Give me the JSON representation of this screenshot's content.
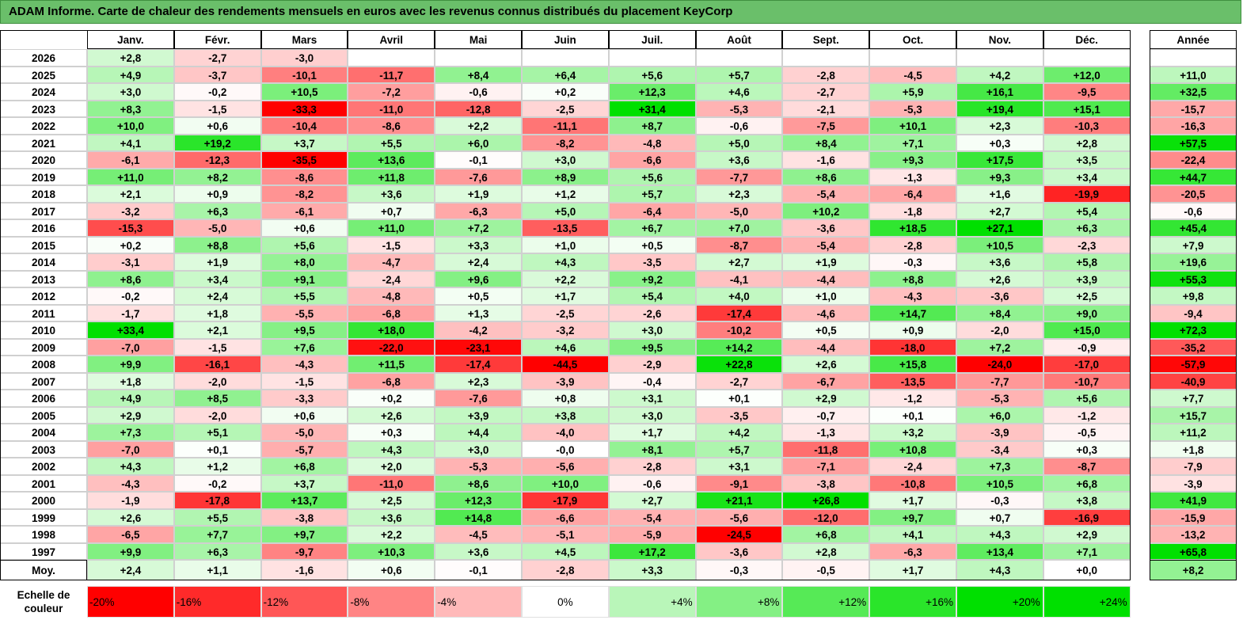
{
  "title": "ADAM Informe. Carte de chaleur des rendements mensuels en euros avec les revenus connus distribués du placement KeyCorp",
  "chart_data": {
    "type": "heatmap",
    "title": "ADAM Informe. Carte de chaleur des rendements mensuels en euros avec les revenus connus distribués du placement KeyCorp",
    "months": [
      "Janv.",
      "Févr.",
      "Mars",
      "Avril",
      "Mai",
      "Juin",
      "Juil.",
      "Août",
      "Sept.",
      "Oct.",
      "Nov.",
      "Déc."
    ],
    "year_header": "Année",
    "rows": [
      {
        "year": "2026",
        "values": [
          "+2,8",
          "-2,7",
          "-3,0",
          "",
          "",
          "",
          "",
          "",
          "",
          "",
          "",
          ""
        ],
        "annual": ""
      },
      {
        "year": "2025",
        "values": [
          "+4,9",
          "-3,7",
          "-10,1",
          "-11,7",
          "+8,4",
          "+6,4",
          "+5,6",
          "+5,7",
          "-2,8",
          "-4,5",
          "+4,2",
          "+12,0"
        ],
        "annual": "+11,0"
      },
      {
        "year": "2024",
        "values": [
          "+3,0",
          "-0,2",
          "+10,5",
          "-7,2",
          "-0,6",
          "+0,2",
          "+12,3",
          "+4,6",
          "-2,7",
          "+5,9",
          "+16,1",
          "-9,5"
        ],
        "annual": "+32,5"
      },
      {
        "year": "2023",
        "values": [
          "+8,3",
          "-1,5",
          "-33,3",
          "-11,0",
          "-12,8",
          "-2,5",
          "+31,4",
          "-5,3",
          "-2,1",
          "-5,3",
          "+19,4",
          "+15,1"
        ],
        "annual": "-15,7"
      },
      {
        "year": "2022",
        "values": [
          "+10,0",
          "+0,6",
          "-10,4",
          "-8,6",
          "+2,2",
          "-11,1",
          "+8,7",
          "-0,6",
          "-7,5",
          "+10,1",
          "+2,3",
          "-10,3"
        ],
        "annual": "-16,3"
      },
      {
        "year": "2021",
        "values": [
          "+4,1",
          "+19,2",
          "+3,7",
          "+5,5",
          "+6,0",
          "-8,2",
          "-4,8",
          "+5,0",
          "+8,4",
          "+7,1",
          "+0,3",
          "+2,8"
        ],
        "annual": "+57,5"
      },
      {
        "year": "2020",
        "values": [
          "-6,1",
          "-12,3",
          "-35,5",
          "+13,6",
          "-0,1",
          "+3,0",
          "-6,6",
          "+3,6",
          "-1,6",
          "+9,3",
          "+17,5",
          "+3,5"
        ],
        "annual": "-22,4"
      },
      {
        "year": "2019",
        "values": [
          "+11,0",
          "+8,2",
          "-8,6",
          "+11,8",
          "-7,6",
          "+8,9",
          "+5,6",
          "-7,7",
          "+8,6",
          "-1,3",
          "+9,3",
          "+3,4"
        ],
        "annual": "+44,7"
      },
      {
        "year": "2018",
        "values": [
          "+2,1",
          "+0,9",
          "-8,2",
          "+3,6",
          "+1,9",
          "+1,2",
          "+5,7",
          "+2,3",
          "-5,4",
          "-6,4",
          "+1,6",
          "-19,9"
        ],
        "annual": "-20,5"
      },
      {
        "year": "2017",
        "values": [
          "-3,2",
          "+6,3",
          "-6,1",
          "+0,7",
          "-6,3",
          "+5,0",
          "-6,4",
          "-5,0",
          "+10,2",
          "-1,8",
          "+2,7",
          "+5,4"
        ],
        "annual": "-0,6"
      },
      {
        "year": "2016",
        "values": [
          "-15,3",
          "-5,0",
          "+0,6",
          "+11,0",
          "+7,2",
          "-13,5",
          "+6,7",
          "+7,0",
          "-3,6",
          "+18,5",
          "+27,1",
          "+6,3"
        ],
        "annual": "+45,4"
      },
      {
        "year": "2015",
        "values": [
          "+0,2",
          "+8,8",
          "+5,6",
          "-1,5",
          "+3,3",
          "+1,0",
          "+0,5",
          "-8,7",
          "-5,4",
          "-2,8",
          "+10,5",
          "-2,3"
        ],
        "annual": "+7,9"
      },
      {
        "year": "2014",
        "values": [
          "-3,1",
          "+1,9",
          "+8,0",
          "-4,7",
          "+2,4",
          "+4,3",
          "-3,5",
          "+2,7",
          "+1,9",
          "-0,3",
          "+3,6",
          "+5,8"
        ],
        "annual": "+19,6"
      },
      {
        "year": "2013",
        "values": [
          "+8,6",
          "+3,4",
          "+9,1",
          "-2,4",
          "+9,6",
          "+2,2",
          "+9,2",
          "-4,1",
          "-4,4",
          "+8,8",
          "+2,6",
          "+3,9"
        ],
        "annual": "+55,3"
      },
      {
        "year": "2012",
        "values": [
          "-0,2",
          "+2,4",
          "+5,5",
          "-4,8",
          "+0,5",
          "+1,7",
          "+5,4",
          "+4,0",
          "+1,0",
          "-4,3",
          "-3,6",
          "+2,5"
        ],
        "annual": "+9,8"
      },
      {
        "year": "2011",
        "values": [
          "-1,7",
          "+1,8",
          "-5,5",
          "-6,8",
          "+1,3",
          "-2,5",
          "-2,6",
          "-17,4",
          "-4,6",
          "+14,7",
          "+8,4",
          "+9,0"
        ],
        "annual": "-9,4"
      },
      {
        "year": "2010",
        "values": [
          "+33,4",
          "+2,1",
          "+9,5",
          "+18,0",
          "-4,2",
          "-3,2",
          "+3,0",
          "-10,2",
          "+0,5",
          "+0,9",
          "-2,0",
          "+15,0"
        ],
        "annual": "+72,3"
      },
      {
        "year": "2009",
        "values": [
          "-7,0",
          "-1,5",
          "+7,6",
          "-22,0",
          "-23,1",
          "+4,6",
          "+9,5",
          "+14,2",
          "-4,4",
          "-18,0",
          "+7,2",
          "-0,9"
        ],
        "annual": "-35,2"
      },
      {
        "year": "2008",
        "values": [
          "+9,9",
          "-16,1",
          "-4,3",
          "+11,5",
          "-17,4",
          "-44,5",
          "-2,9",
          "+22,8",
          "+2,6",
          "+15,8",
          "-24,0",
          "-17,0"
        ],
        "annual": "-57,9"
      },
      {
        "year": "2007",
        "values": [
          "+1,8",
          "-2,0",
          "-1,5",
          "-6,8",
          "+2,3",
          "-3,9",
          "-0,4",
          "-2,7",
          "-6,7",
          "-13,5",
          "-7,7",
          "-10,7"
        ],
        "annual": "-40,9"
      },
      {
        "year": "2006",
        "values": [
          "+4,9",
          "+8,5",
          "-3,3",
          "+0,2",
          "-7,6",
          "+0,8",
          "+3,1",
          "+0,1",
          "+2,9",
          "-1,2",
          "-5,3",
          "+5,6"
        ],
        "annual": "+7,7"
      },
      {
        "year": "2005",
        "values": [
          "+2,9",
          "-2,0",
          "+0,6",
          "+2,6",
          "+3,9",
          "+3,8",
          "+3,0",
          "-3,5",
          "-0,7",
          "+0,1",
          "+6,0",
          "-1,2"
        ],
        "annual": "+15,7"
      },
      {
        "year": "2004",
        "values": [
          "+7,3",
          "+5,1",
          "-5,0",
          "+0,3",
          "+4,4",
          "-4,0",
          "+1,7",
          "+4,2",
          "-1,3",
          "+3,2",
          "-3,9",
          "-0,5"
        ],
        "annual": "+11,2"
      },
      {
        "year": "2003",
        "values": [
          "-7,0",
          "+0,1",
          "-5,7",
          "+4,3",
          "+3,0",
          "-0,0",
          "+8,1",
          "+5,7",
          "-11,8",
          "+10,8",
          "-3,4",
          "+0,3"
        ],
        "annual": "+1,8"
      },
      {
        "year": "2002",
        "values": [
          "+4,3",
          "+1,2",
          "+6,8",
          "+2,0",
          "-5,3",
          "-5,6",
          "-2,8",
          "+3,1",
          "-7,1",
          "-2,4",
          "+7,3",
          "-8,7"
        ],
        "annual": "-7,9"
      },
      {
        "year": "2001",
        "values": [
          "-4,3",
          "-0,2",
          "+3,7",
          "-11,0",
          "+8,6",
          "+10,0",
          "-0,6",
          "-9,1",
          "-3,8",
          "-10,8",
          "+10,5",
          "+6,8"
        ],
        "annual": "-3,9"
      },
      {
        "year": "2000",
        "values": [
          "-1,9",
          "-17,8",
          "+13,7",
          "+2,5",
          "+12,3",
          "-17,9",
          "+2,7",
          "+21,1",
          "+26,8",
          "+1,7",
          "-0,3",
          "+3,8"
        ],
        "annual": "+41,9"
      },
      {
        "year": "1999",
        "values": [
          "+2,6",
          "+5,5",
          "-3,8",
          "+3,6",
          "+14,8",
          "-6,6",
          "-5,4",
          "-5,6",
          "-12,0",
          "+9,7",
          "+0,7",
          "-16,9"
        ],
        "annual": "-15,9"
      },
      {
        "year": "1998",
        "values": [
          "-6,5",
          "+7,7",
          "+9,7",
          "+2,2",
          "-4,5",
          "-5,1",
          "-5,9",
          "-24,5",
          "+6,8",
          "+4,1",
          "+4,3",
          "+2,9"
        ],
        "annual": "-13,2"
      },
      {
        "year": "1997",
        "values": [
          "+9,9",
          "+6,3",
          "-9,7",
          "+10,3",
          "+3,6",
          "+4,5",
          "+17,2",
          "-3,6",
          "+2,8",
          "-6,3",
          "+13,4",
          "+7,1"
        ],
        "annual": "+65,8"
      }
    ],
    "average": {
      "label": "Moy.",
      "values": [
        "+2,4",
        "+1,1",
        "-1,6",
        "+0,6",
        "-0,1",
        "-2,8",
        "+3,3",
        "-0,3",
        "-0,5",
        "+1,7",
        "+4,3",
        "+0,0"
      ],
      "annual": "+8,2"
    },
    "scale": {
      "label_line1": "Echelle de",
      "label_line2": "couleur",
      "steps": [
        "-20%",
        "-16%",
        "-12%",
        "-8%",
        "-4%",
        "0%",
        "+4%",
        "+8%",
        "+12%",
        "+16%",
        "+20%",
        "+24%"
      ],
      "step_values": [
        -20,
        -16,
        -12,
        -8,
        -4,
        0,
        4,
        8,
        12,
        16,
        20,
        24
      ]
    },
    "colors": {
      "negative": "#ff0000",
      "neutral": "#ffffff",
      "positive": "#00e000",
      "title_bg": "#6abf6a"
    }
  }
}
